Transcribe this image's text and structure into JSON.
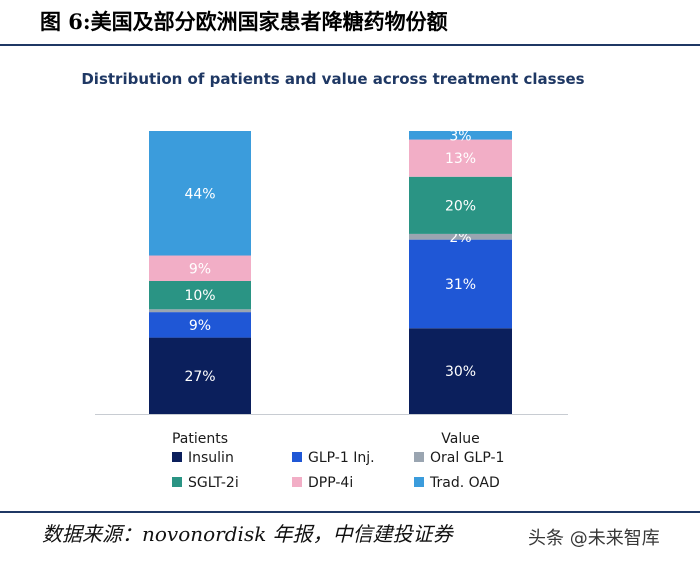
{
  "header": {
    "figure_title": "图 6:美国及部分欧洲国家患者降糖药物份额"
  },
  "footer": {
    "source": "数据来源：novonordisk 年报，中信建投证券",
    "watermark": "头条 @未来智库"
  },
  "colors": {
    "Insulin": "#0b1f5c",
    "GLP-1 Inj.": "#1f57d6",
    "Oral GLP-1": "#9aa5b1",
    "SGLT-2i": "#2a9484",
    "DPP-4i": "#f2aec6",
    "Trad. OAD": "#3b9cdc",
    "title": "#1f3864",
    "axis": "#c8ccd2"
  },
  "chart_data": {
    "type": "bar",
    "stacked": true,
    "title": "Distribution of patients and value across treatment classes",
    "categories": [
      "Patients",
      "Value"
    ],
    "series": [
      {
        "name": "Insulin",
        "values": [
          27,
          30
        ],
        "labels": [
          "27%",
          "30%"
        ]
      },
      {
        "name": "GLP-1 Inj.",
        "values": [
          9,
          31
        ],
        "labels": [
          "9%",
          "31%"
        ]
      },
      {
        "name": "Oral GLP-1",
        "values": [
          1,
          2
        ],
        "labels": [
          "",
          "2%"
        ]
      },
      {
        "name": "SGLT-2i",
        "values": [
          10,
          20
        ],
        "labels": [
          "10%",
          "20%"
        ]
      },
      {
        "name": "DPP-4i",
        "values": [
          9,
          13
        ],
        "labels": [
          "9%",
          "13%"
        ]
      },
      {
        "name": "Trad. OAD",
        "values": [
          44,
          3
        ],
        "labels": [
          "44%",
          "3%"
        ]
      }
    ],
    "ylim": [
      0,
      100
    ],
    "legend": {
      "position": "bottom",
      "items": [
        "Insulin",
        "GLP-1 Inj.",
        "Oral GLP-1",
        "SGLT-2i",
        "DPP-4i",
        "Trad. OAD"
      ]
    }
  }
}
